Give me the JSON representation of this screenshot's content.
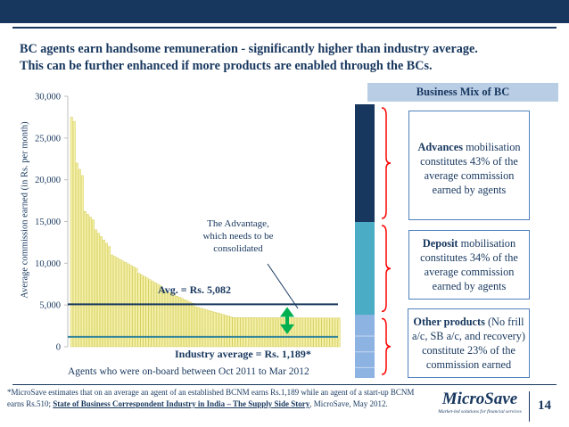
{
  "slide": {
    "headline_line1": "BC agents earn handsome remuneration - significantly higher than industry average.",
    "headline_line2": "This can be further enhanced if more products are enabled through the BCs.",
    "page_number": "14",
    "logo_name": "MicroSave",
    "logo_tagline": "Market-led solutions for financial services",
    "footnote_part1": "*MicroSave estimates that on an average an agent of an established BCNM earns Rs.1,189  while an agent of a start-up BCNM earns Rs.510;",
    "footnote_link": "State of Business Correspondent Industry in India – The Supply Side Story",
    "footnote_part2": ", MicroSave, May 2012."
  },
  "colors": {
    "navy": "#17375e",
    "bar_fill": "#f3f0a8",
    "bar_stroke": "#c8bc2c",
    "avg_line": "#17375e",
    "industry_line": "#31849b",
    "arrow": "#00b050",
    "advances": "#17375e",
    "deposit": "#4bacc6",
    "other": "#8db3e2",
    "brace": "#ff0000"
  },
  "chart_data": [
    {
      "type": "bar",
      "title": "",
      "xlabel": "Agents who were on-board between Oct 2011 to Mar 2012",
      "ylabel": "Average commission earned (in Rs. per month)",
      "ylim": [
        0,
        30000
      ],
      "yticks": [
        0,
        5000,
        10000,
        15000,
        20000,
        25000,
        30000
      ],
      "ytick_labels": [
        "0",
        "5,000",
        "10,000",
        "15,000",
        "20,000",
        "25,000",
        "30,000"
      ],
      "grid": false,
      "agent_count": 100,
      "earnings_profile": [
        {
          "from": 0,
          "to": 2,
          "start": 27500,
          "end": 27000
        },
        {
          "from": 2,
          "to": 5,
          "start": 22000,
          "end": 20500
        },
        {
          "from": 5,
          "to": 9,
          "start": 16200,
          "end": 15200
        },
        {
          "from": 9,
          "to": 15,
          "start": 14000,
          "end": 12000
        },
        {
          "from": 15,
          "to": 25,
          "start": 11000,
          "end": 9400
        },
        {
          "from": 25,
          "to": 34,
          "start": 8800,
          "end": 7300
        },
        {
          "from": 34,
          "to": 46,
          "start": 6800,
          "end": 5200
        },
        {
          "from": 46,
          "to": 60,
          "start": 4800,
          "end": 3600
        },
        {
          "from": 60,
          "to": 100,
          "start": 3500,
          "end": 3450
        }
      ],
      "series": [
        {
          "name": "Average commission",
          "type": "reference",
          "value": 5082,
          "label": "Avg. = Rs. 5,082"
        },
        {
          "name": "Industry average",
          "type": "reference",
          "value": 1189,
          "label": "Industry average = Rs. 1,189*"
        }
      ],
      "annotation": "The Advantage, which needs to be consolidated"
    },
    {
      "type": "bar",
      "title": "Business Mix of BC",
      "stacked": true,
      "categories": [
        "Advances",
        "Deposit",
        "Other products"
      ],
      "values": [
        43,
        34,
        23
      ],
      "unit": "percent"
    }
  ],
  "callouts": {
    "advances_bold": "Advances",
    "advances_text": " mobilisation constitutes 43% of the average commission earned by agents",
    "deposit_bold": "Deposit",
    "deposit_text": " mobilisation constitutes 34% of the average commission earned by agents",
    "other_bold": "Other products",
    "other_text": " (No frill a/c, SB a/c, and recovery) constitute 23% of the commission earned"
  }
}
